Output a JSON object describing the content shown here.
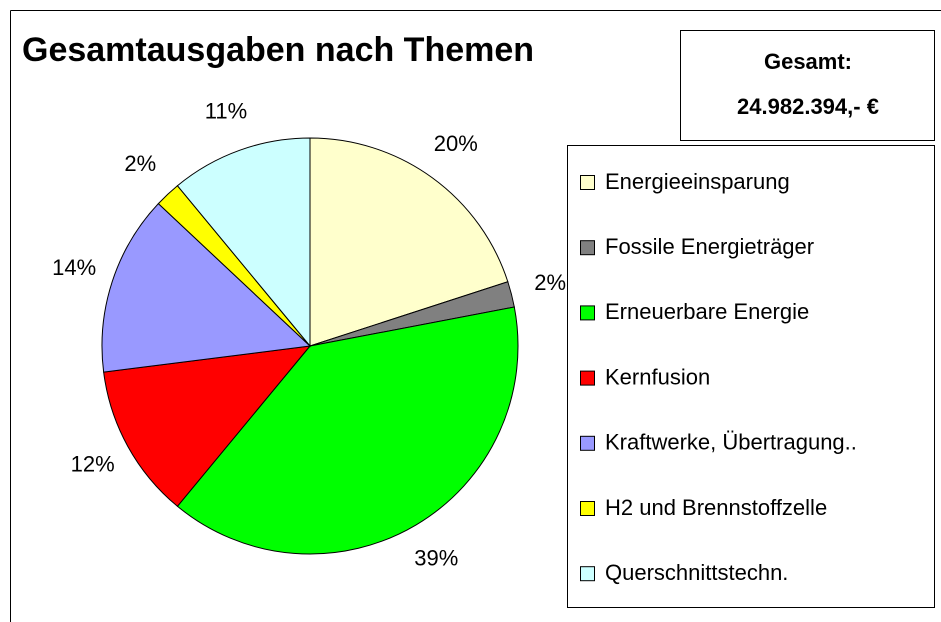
{
  "chart_data": {
    "type": "pie",
    "title": "Gesamtausgaben nach Themen",
    "annotations": [
      "Gesamt:",
      "24.982.394,- €"
    ],
    "categories": [
      "Energieeinsparung",
      "Fossile Energieträger",
      "Erneuerbare Energie",
      "Kernfusion",
      "Kraftwerke, Übertragung..",
      "H2 und Brennstoffzelle",
      "Querschnittstechn."
    ],
    "values": [
      20,
      2,
      39,
      12,
      14,
      2,
      11
    ],
    "value_labels": [
      "20%",
      "2%",
      "39%",
      "12%",
      "14%",
      "2%",
      "11%"
    ],
    "colors": [
      "#ffffcc",
      "#808080",
      "#00ff00",
      "#ff0000",
      "#9999ff",
      "#ffff00",
      "#ccffff"
    ],
    "legend": "right"
  }
}
